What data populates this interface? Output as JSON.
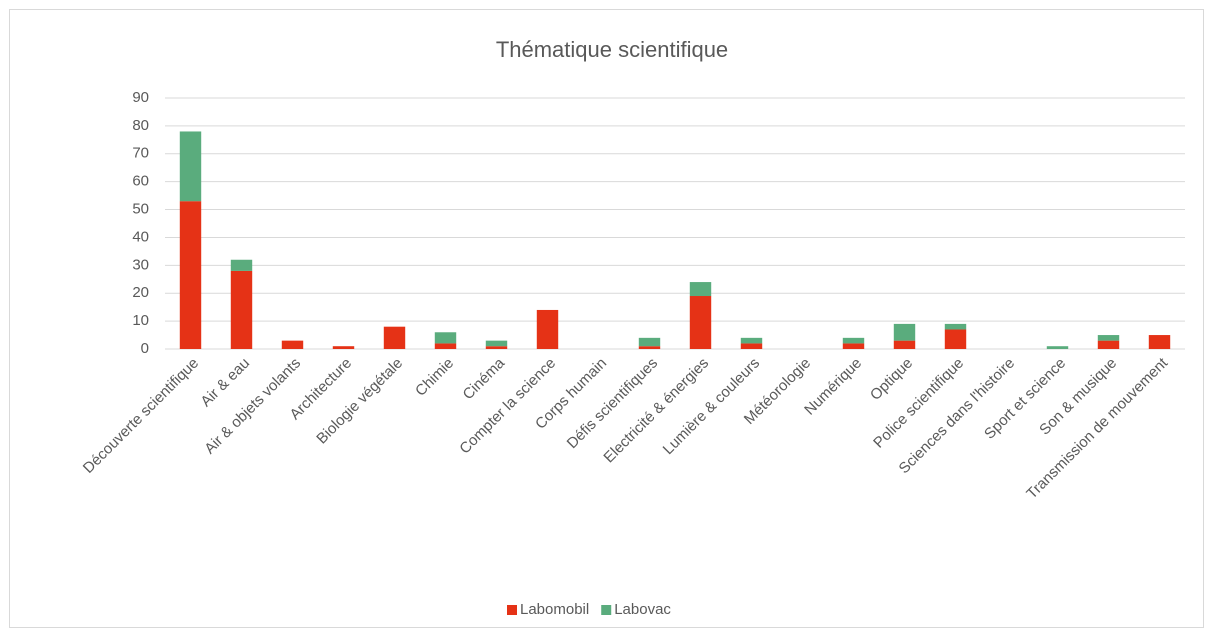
{
  "chart_data": {
    "type": "bar",
    "stacked": true,
    "title": "Thématique scientifique",
    "categories": [
      "Découverte scientifique",
      "Air & eau",
      "Air & objets volants",
      "Architecture",
      "Biologie végétale",
      "Chimie",
      "Cinéma",
      "Compter la science",
      "Corps humain",
      "Défis scientifiques",
      "Electricité & énergies",
      "Lumière & couleurs",
      "Météorologie",
      "Numérique",
      "Optique",
      "Police scientifique",
      "Sciences dans l'histoire",
      "Sport et science",
      "Son & musique",
      "Transmission de mouvement"
    ],
    "series": [
      {
        "name": "Labomobil",
        "color": "#e53216",
        "values": [
          53,
          28,
          3,
          1,
          8,
          2,
          1,
          14,
          0,
          1,
          19,
          2,
          0,
          2,
          3,
          7,
          0,
          0,
          3,
          5
        ]
      },
      {
        "name": "Labovac",
        "color": "#5aac7d",
        "values": [
          25,
          4,
          0,
          0,
          0,
          4,
          2,
          0,
          0,
          3,
          5,
          2,
          0,
          2,
          6,
          2,
          0,
          1,
          2,
          0
        ]
      }
    ],
    "ylim": [
      0,
      90
    ],
    "yticks": [
      0,
      10,
      20,
      30,
      40,
      50,
      60,
      70,
      80,
      90
    ],
    "grid": true,
    "legend": "bottom"
  }
}
